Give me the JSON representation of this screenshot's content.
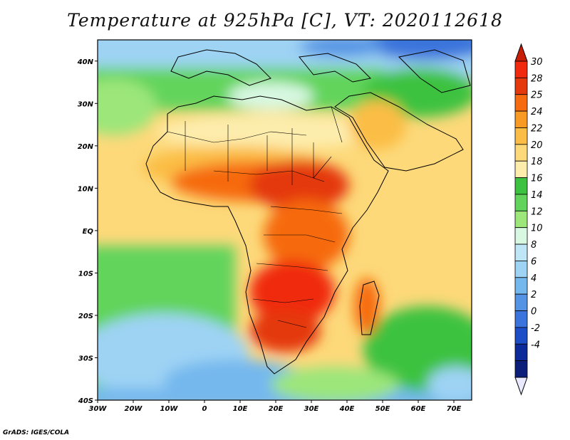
{
  "title": "Temperature at 925hPa [C], VT: 2020112618",
  "credit": "GrADS: IGES/COLA",
  "map": {
    "lon_ticks": [
      "30W",
      "20W",
      "10W",
      "0",
      "10E",
      "20E",
      "30E",
      "40E",
      "50E",
      "60E",
      "70E"
    ],
    "lat_ticks": [
      "40N",
      "30N",
      "20N",
      "10N",
      "EQ",
      "10S",
      "20S",
      "30S",
      "40S"
    ],
    "lon_range": [
      -30,
      75
    ],
    "lat_range": [
      -40,
      45
    ]
  },
  "colorbar": {
    "labels": [
      "30",
      "28",
      "25",
      "24",
      "22",
      "20",
      "18",
      "16",
      "14",
      "12",
      "10",
      "8",
      "6",
      "4",
      "2",
      "0",
      "-2",
      "-4"
    ],
    "colors": [
      "#f0290f",
      "#e4380d",
      "#f66a10",
      "#f89a24",
      "#fbbd45",
      "#fdd97a",
      "#fdedad",
      "#3cc240",
      "#62d45b",
      "#9ce67a",
      "#d8f8e2",
      "#bfe6f6",
      "#9ed3f4",
      "#74b8ee",
      "#5594e4",
      "#3b74dc",
      "#1d4ec8",
      "#0c2a9a",
      "#0b1f7a"
    ],
    "over_color": "#c81e08",
    "under_color": "#e9e9ff"
  }
}
